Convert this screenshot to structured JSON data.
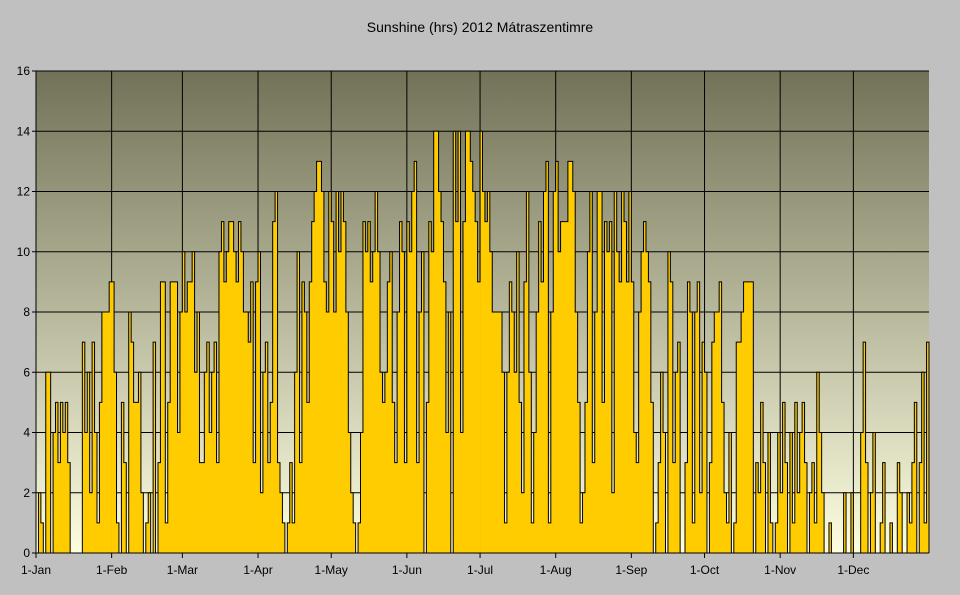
{
  "chart_data": {
    "type": "area",
    "title": "Sunshine (hrs) 2012 Mátraszentimre",
    "xlabel": "",
    "ylabel": "",
    "ylim": [
      0,
      16
    ],
    "yticks": [
      0,
      2,
      4,
      6,
      8,
      10,
      12,
      14,
      16
    ],
    "grid": true,
    "legend": "none",
    "x_tick_labels": [
      "1-Jan",
      "1-Feb",
      "1-Mar",
      "1-Apr",
      "1-May",
      "1-Jun",
      "1-Jul",
      "1-Aug",
      "1-Sep",
      "1-Oct",
      "1-Nov",
      "1-Dec"
    ],
    "x_tick_days": [
      0,
      31,
      60,
      91,
      121,
      152,
      182,
      213,
      244,
      274,
      305,
      335
    ],
    "total_days": 366,
    "fill_color": "#ffcc00",
    "bg_top_color": "#727258",
    "bg_bottom_color": "#fdfde0",
    "series": [
      {
        "name": "Sunshine (hrs)",
        "values": [
          0,
          2,
          1,
          0,
          6,
          6,
          0,
          4,
          5,
          3,
          5,
          4,
          5,
          3,
          0,
          0,
          0,
          0,
          0,
          7,
          4,
          6,
          2,
          7,
          4,
          1,
          5,
          8,
          8,
          8,
          9,
          9,
          6,
          1,
          0,
          5,
          3,
          0,
          8,
          7,
          5,
          5,
          6,
          2,
          0,
          1,
          2,
          0,
          7,
          0,
          3,
          9,
          9,
          1,
          5,
          9,
          9,
          9,
          4,
          8,
          10,
          8,
          9,
          9,
          10,
          6,
          8,
          3,
          3,
          6,
          7,
          4,
          6,
          7,
          3,
          10,
          11,
          9,
          10,
          11,
          11,
          10,
          9,
          11,
          10,
          8,
          8,
          7,
          9,
          3,
          9,
          10,
          2,
          6,
          7,
          3,
          5,
          11,
          12,
          3,
          2,
          1,
          0,
          1,
          3,
          1,
          6,
          10,
          3,
          9,
          8,
          5,
          9,
          11,
          12,
          13,
          13,
          12,
          9,
          8,
          12,
          11,
          8,
          12,
          10,
          12,
          11,
          8,
          4,
          2,
          1,
          0,
          1,
          4,
          11,
          10,
          11,
          9,
          10,
          12,
          10,
          6,
          5,
          6,
          9,
          10,
          5,
          3,
          8,
          11,
          10,
          3,
          11,
          10,
          12,
          13,
          3,
          8,
          10,
          0,
          5,
          11,
          10,
          14,
          14,
          12,
          11,
          9,
          4,
          8,
          0,
          14,
          11,
          14,
          4,
          11,
          14,
          14,
          13,
          12,
          11,
          9,
          14,
          12,
          11,
          12,
          10,
          8,
          8,
          8,
          8,
          6,
          1,
          6,
          9,
          8,
          6,
          10,
          5,
          2,
          9,
          12,
          6,
          1,
          4,
          8,
          11,
          9,
          12,
          13,
          1,
          8,
          12,
          13,
          10,
          11,
          11,
          11,
          13,
          13,
          12,
          8,
          5,
          1,
          2,
          5,
          10,
          12,
          3,
          8,
          12,
          12,
          5,
          11,
          10,
          11,
          2,
          12,
          10,
          9,
          12,
          11,
          9,
          12,
          9,
          4,
          3,
          8,
          10,
          11,
          10,
          9,
          5,
          0,
          1,
          3,
          6,
          4,
          0,
          10,
          9,
          3,
          6,
          7,
          0,
          0,
          3,
          9,
          8,
          1,
          8,
          9,
          2,
          7,
          6,
          0,
          3,
          7,
          8,
          8,
          9,
          5,
          2,
          1,
          4,
          0,
          1,
          7,
          7,
          8,
          9,
          9,
          9,
          9,
          0,
          3,
          2,
          5,
          3,
          0,
          4,
          1,
          0,
          1,
          4,
          2,
          5,
          3,
          0,
          4,
          1,
          5,
          2,
          4,
          5,
          3,
          0,
          2,
          3,
          1,
          6,
          4,
          2,
          0,
          0,
          1,
          0,
          0,
          0,
          0,
          0,
          2,
          0,
          0,
          2,
          0,
          0,
          0,
          4,
          7,
          3,
          0,
          2,
          4,
          0,
          0,
          1,
          3,
          0,
          0,
          1,
          0,
          0,
          3,
          2,
          0,
          0,
          2,
          1,
          3,
          5,
          0,
          3,
          6,
          1,
          7
        ]
      }
    ]
  }
}
